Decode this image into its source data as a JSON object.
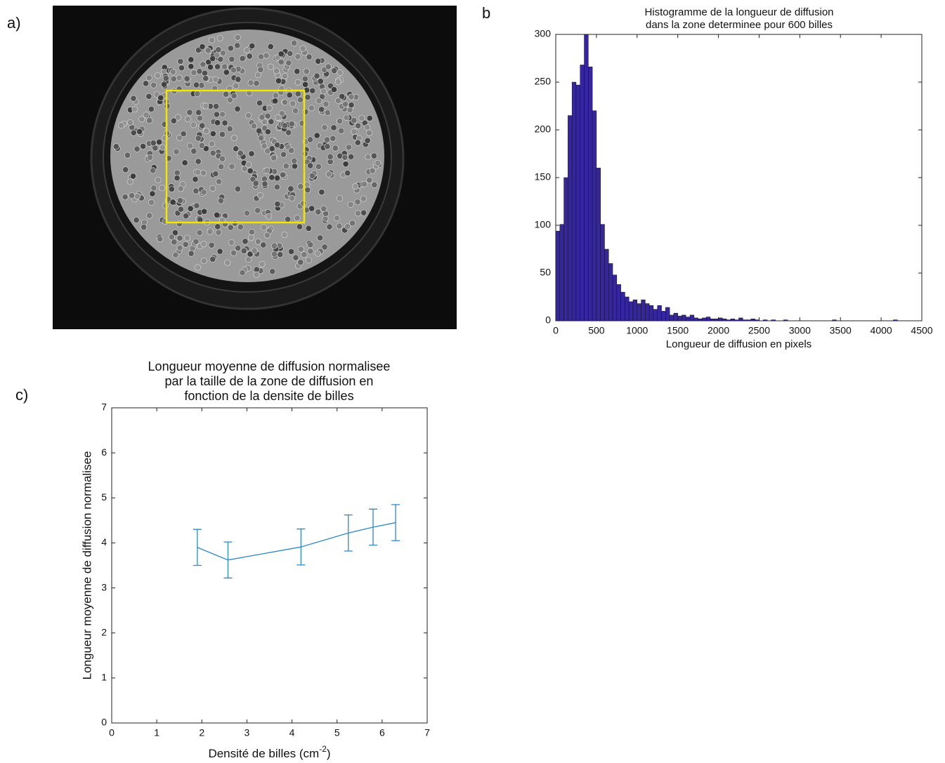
{
  "chart_data": [
    {
      "type": "image",
      "panel_label": "a)"
    },
    {
      "type": "histogram",
      "panel_label": "b",
      "title": [
        "Histogramme de la longueur de diffusion",
        "dans la zone determinee pour 600 billes"
      ],
      "xlabel": "Longueur de diffusion en pixels",
      "bins": [
        0,
        50,
        100,
        150,
        200,
        250,
        300,
        350,
        400,
        450,
        500,
        550,
        600,
        650,
        700,
        750,
        800,
        850,
        900,
        950,
        1000,
        1050,
        1100,
        1150,
        1200,
        1250,
        1300,
        1350,
        1400,
        1450,
        1500,
        1550,
        1600,
        1650,
        1700,
        1750,
        1800,
        1850,
        1900,
        1950,
        2000,
        2050,
        2100,
        2150,
        2200,
        2250,
        2300,
        2350,
        2400,
        2450,
        2500,
        2550,
        2600,
        2650,
        2700,
        2750,
        2800,
        2850,
        2900,
        2950,
        3000,
        3050,
        3100,
        3150,
        3200,
        3250,
        3300,
        3350,
        3400,
        3450,
        3500,
        3550,
        3600,
        3650,
        3700,
        3750,
        3800,
        3850,
        3900,
        3950,
        4000,
        4050,
        4100,
        4150,
        4200
      ],
      "values": [
        94,
        101,
        150,
        215,
        250,
        247,
        268,
        300,
        266,
        220,
        160,
        101,
        75,
        60,
        48,
        38,
        30,
        25,
        20,
        22,
        18,
        22,
        18,
        16,
        12,
        16,
        10,
        14,
        6,
        8,
        5,
        6,
        4,
        6,
        3,
        2,
        3,
        4,
        2,
        2,
        3,
        2,
        1,
        2,
        1,
        3,
        1,
        1,
        2,
        1,
        0,
        1,
        0,
        1,
        0,
        0,
        1,
        0,
        0,
        0,
        0,
        0,
        0,
        0,
        0,
        0,
        0,
        0,
        1,
        0,
        0,
        0,
        0,
        0,
        0,
        0,
        0,
        0,
        0,
        0,
        0,
        0,
        0,
        1
      ],
      "color": "#3526a0",
      "xlim": [
        0,
        4500
      ],
      "ylim": [
        0,
        300
      ],
      "xticks": [
        0,
        500,
        1000,
        1500,
        2000,
        2500,
        3000,
        3500,
        4000,
        4500
      ],
      "yticks": [
        0,
        50,
        100,
        150,
        200,
        250,
        300
      ]
    },
    {
      "type": "errorbar",
      "panel_label": "c)",
      "title": [
        "Longueur moyenne de diffusion normalisee",
        "par la taille de la zone de diffusion en",
        "fonction de la densite de billes"
      ],
      "xlabel": [
        "Densité de billes (cm",
        "-2",
        ")"
      ],
      "ylabel": "Longueur moyenne de diffusion normalisee",
      "x": [
        1.9,
        2.58,
        4.2,
        5.25,
        5.8,
        6.3
      ],
      "values": [
        3.9,
        3.62,
        3.91,
        4.22,
        4.35,
        4.45
      ],
      "errors": [
        0.4,
        0.4,
        0.4,
        0.4,
        0.4,
        0.4
      ],
      "color": "#2a8ac6",
      "xlim": [
        0,
        7
      ],
      "ylim": [
        0,
        7
      ],
      "xticks": [
        0,
        1,
        2,
        3,
        4,
        5,
        6,
        7
      ],
      "yticks": [
        0,
        1,
        2,
        3,
        4,
        5,
        6,
        7
      ]
    }
  ]
}
